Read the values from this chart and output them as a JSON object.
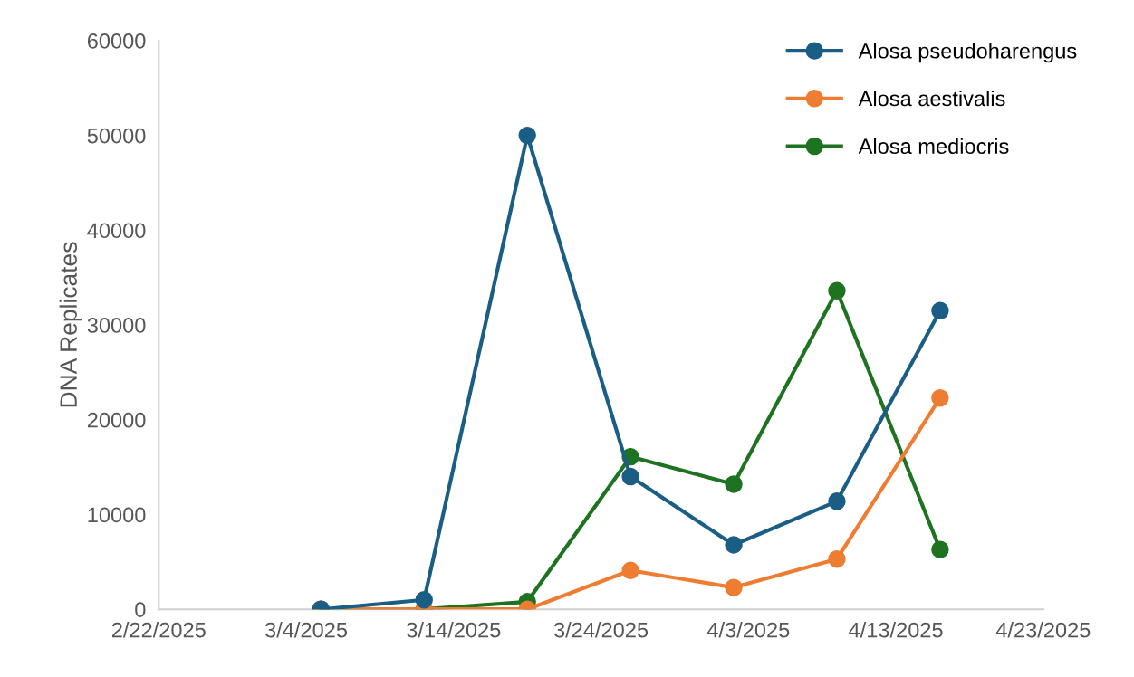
{
  "chart_data": {
    "type": "line",
    "ylabel": "DNA Replicates",
    "x": [
      "2025-03-05",
      "2025-03-12",
      "2025-03-19",
      "2025-03-26",
      "2025-04-02",
      "2025-04-09",
      "2025-04-16"
    ],
    "series": [
      {
        "name": "Alosa pseudoharengus",
        "color": "#1b5e85",
        "values": [
          0,
          1000,
          50000,
          14000,
          6800,
          11400,
          31500
        ]
      },
      {
        "name": "Alosa aestivalis",
        "color": "#ee7d31",
        "values": [
          0,
          0,
          0,
          4100,
          2300,
          5300,
          22300
        ]
      },
      {
        "name": "Alosa mediocris",
        "color": "#1e7321",
        "values": [
          0,
          0,
          800,
          16100,
          13200,
          33600,
          6300
        ]
      }
    ],
    "xlim": [
      "2025-02-22",
      "2025-04-23"
    ],
    "xticks": [
      {
        "value": "2025-02-22",
        "label": "2/22/2025"
      },
      {
        "value": "2025-03-04",
        "label": "3/4/2025"
      },
      {
        "value": "2025-03-14",
        "label": "3/14/2025"
      },
      {
        "value": "2025-03-24",
        "label": "3/24/2025"
      },
      {
        "value": "2025-04-03",
        "label": "4/3/2025"
      },
      {
        "value": "2025-04-13",
        "label": "4/13/2025"
      },
      {
        "value": "2025-04-23",
        "label": "4/23/2025"
      }
    ],
    "ylim": [
      0,
      60000
    ],
    "yticks": [
      0,
      10000,
      20000,
      30000,
      40000,
      50000,
      60000
    ],
    "marker": "circle",
    "line_style": "solid",
    "grid": false,
    "legend": "top right"
  }
}
